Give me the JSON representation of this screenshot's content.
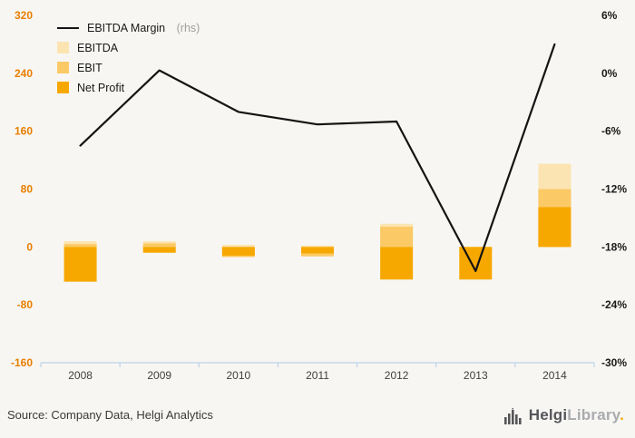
{
  "chart_data": {
    "type": "bar",
    "subtype": "overlaid bars with line on right axis",
    "categories": [
      "2008",
      "2009",
      "2010",
      "2011",
      "2012",
      "2013",
      "2014"
    ],
    "series": [
      {
        "name": "EBITDA",
        "type": "bar",
        "color": "#fce4b2",
        "axis": "left",
        "values": [
          8,
          8,
          3,
          2,
          32,
          -5,
          115
        ]
      },
      {
        "name": "EBIT",
        "type": "bar",
        "color": "#fbca66",
        "axis": "left",
        "values": [
          4,
          5,
          -14,
          -13,
          28,
          -8,
          80
        ]
      },
      {
        "name": "Net Profit",
        "type": "bar",
        "color": "#f7a800",
        "axis": "left",
        "values": [
          -48,
          -8,
          -12,
          -9,
          -45,
          -45,
          55
        ]
      },
      {
        "name": "EBITDA Margin (rhs)",
        "type": "line",
        "color": "#141414",
        "axis": "right",
        "values": [
          -7.5,
          0.3,
          -4,
          -5.3,
          -5,
          -20.5,
          3
        ]
      }
    ],
    "left_axis": {
      "min": -160,
      "max": 320,
      "ticks": [
        320,
        240,
        160,
        80,
        0,
        -80,
        -160
      ],
      "label_color": "#e87e00"
    },
    "right_axis": {
      "min": -30,
      "max": 6,
      "tick_labels": [
        "6%",
        "0%",
        "-6%",
        "-12%",
        "-18%",
        "-24%",
        "-30%"
      ],
      "label_color": "#1a1a1a"
    },
    "grid": false,
    "legend_position": "top-left",
    "axis_line_color": "#bcd2e8",
    "x_label_color": "#3f3f3f"
  },
  "legend": {
    "items": [
      {
        "label": "EBITDA Margin",
        "suffix": " (rhs)",
        "swatch": "line",
        "color": "#141414"
      },
      {
        "label": "EBITDA",
        "suffix": "",
        "swatch": "square",
        "color": "#fce4b2"
      },
      {
        "label": "EBIT",
        "suffix": "",
        "swatch": "square",
        "color": "#fbca66"
      },
      {
        "label": "Net Profit",
        "suffix": "",
        "swatch": "square",
        "color": "#f7a800"
      }
    ]
  },
  "footer": {
    "source": "Source: Company Data, Helgi Analytics",
    "logo_primary": "Helgi",
    "logo_secondary": "Library",
    "logo_dot": "."
  }
}
